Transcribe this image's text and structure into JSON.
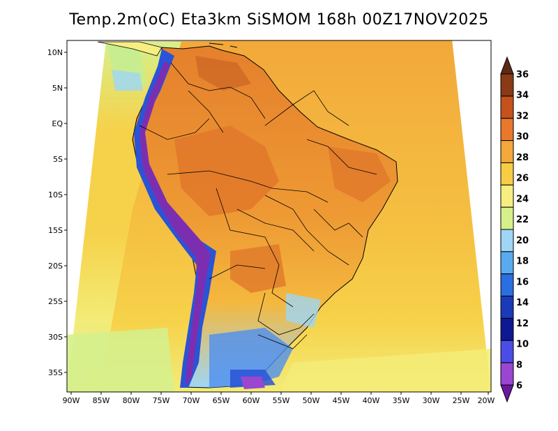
{
  "title": "Temp.2m(oC) Eta3km SiSMOM 168h 00Z17NOV2025",
  "colors": {
    "ocean_warm": "#f2a83a",
    "ocean_mid": "#f6cd45",
    "ocean_cool": "#f3ef7a",
    "ocean_cold": "#d6f08c",
    "land_hot": "#e8872c",
    "land_hot2": "#d9702a",
    "andes_cold": "#7b2fb0",
    "andes_blue": "#2a54d6",
    "south_blue": "#4d8ff0",
    "light_blue": "#9fd6f5",
    "outside": "#ffffff"
  },
  "lat_labels": [
    "10N",
    "5N",
    "EQ",
    "5S",
    "10S",
    "15S",
    "20S",
    "25S",
    "30S",
    "35S"
  ],
  "lon_labels": [
    "90W",
    "85W",
    "80W",
    "75W",
    "70W",
    "65W",
    "60W",
    "55W",
    "50W",
    "45W",
    "40W",
    "35W",
    "30W",
    "25W",
    "20W"
  ],
  "colorbar": {
    "labels": [
      "36",
      "34",
      "32",
      "30",
      "28",
      "26",
      "24",
      "22",
      "20",
      "18",
      "16",
      "14",
      "12",
      "10",
      "8",
      "6"
    ],
    "colors": [
      "#5c2a14",
      "#8a3a14",
      "#c4521c",
      "#e8782c",
      "#f2a83a",
      "#f6cd45",
      "#f6ee80",
      "#d6f08c",
      "#9fd6f5",
      "#5aaaf0",
      "#2a6ee0",
      "#1a3ab8",
      "#0e1890",
      "#4c4ce6",
      "#9a46d0",
      "#6a18a0"
    ]
  }
}
